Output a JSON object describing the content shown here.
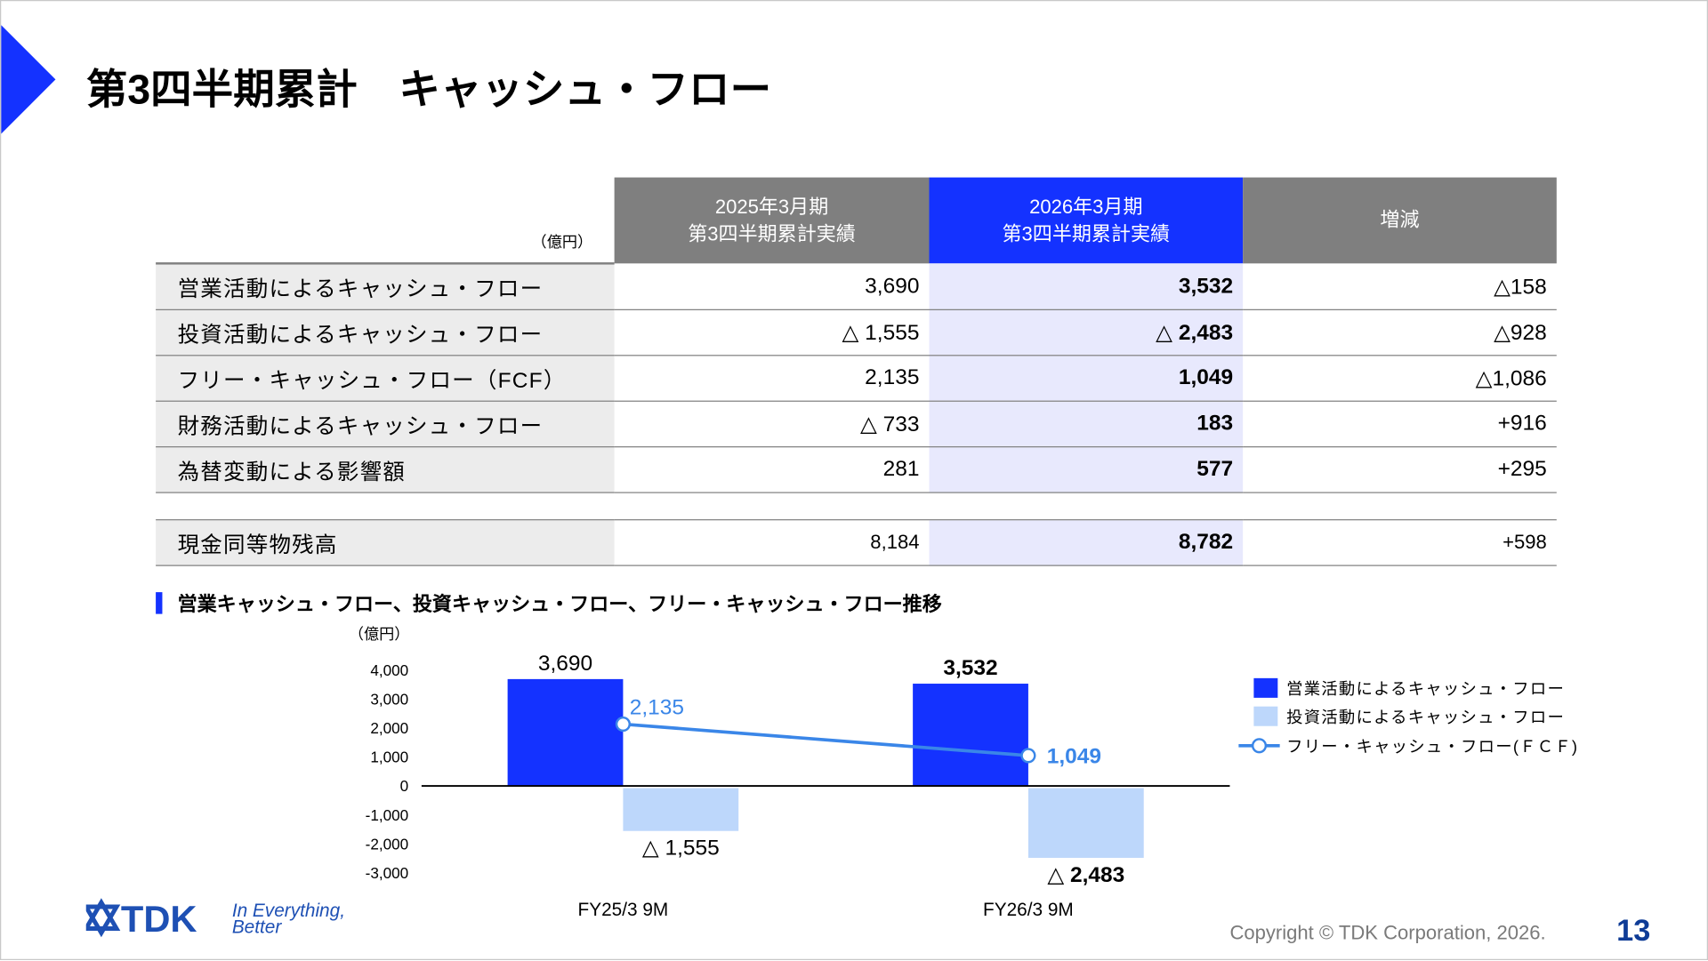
{
  "title": "第3四半期累計　キャッシュ・フロー",
  "table": {
    "unit": "（億円）",
    "headers": [
      {
        "line1": "2025年3月期",
        "line2": "第3四半期累計実績"
      },
      {
        "line1": "2026年3月期",
        "line2": "第3四半期累計実績"
      },
      {
        "line1": "増減",
        "line2": ""
      }
    ],
    "rows": [
      {
        "label": "営業活動によるキャッシュ・フロー",
        "fy25": "3,690",
        "fy26": "3,532",
        "diff": "△158"
      },
      {
        "label": "投資活動によるキャッシュ・フロー",
        "fy25": "△ 1,555",
        "fy26": "△ 2,483",
        "diff": "△928"
      },
      {
        "label": "フリー・キャッシュ・フロー（FCF）",
        "fy25": "2,135",
        "fy26": "1,049",
        "diff": "△1,086"
      },
      {
        "label": "財務活動によるキャッシュ・フロー",
        "fy25": "△ 733",
        "fy26": "183",
        "diff": "+916"
      },
      {
        "label": "為替変動による影響額",
        "fy25": "281",
        "fy26": "577",
        "diff": "+295"
      }
    ],
    "cash": {
      "label": "現金同等物残高",
      "fy25": "8,184",
      "fy26": "8,782",
      "diff": "+598"
    }
  },
  "chart_section_title": "営業キャッシュ・フロー、投資キャッシュ・フロー、フリー・キャッシュ・フロー推移",
  "chart_data": {
    "type": "bar",
    "ylabel": "（億円）",
    "ylim": [
      -3000,
      4000
    ],
    "yticks": [
      "4,000",
      "3,000",
      "2,000",
      "1,000",
      "0",
      "-1,000",
      "-2,000",
      "-3,000"
    ],
    "ytick_values": [
      4000,
      3000,
      2000,
      1000,
      0,
      -1000,
      -2000,
      -3000
    ],
    "categories": [
      "FY25/3 9M",
      "FY26/3 9M"
    ],
    "series": [
      {
        "name": "営業活動によるキャッシュ・フロー",
        "kind": "bar",
        "color": "#1432ff",
        "values": [
          3690,
          3532
        ],
        "labels": [
          "3,690",
          "3,532"
        ]
      },
      {
        "name": "投資活動によるキャッシュ・フロー",
        "kind": "bar",
        "color": "#bdd7fb",
        "values": [
          -1555,
          -2483
        ],
        "labels": [
          "△ 1,555",
          "△ 2,483"
        ]
      },
      {
        "name": "フリー・キャッシュ・フロー(ＦＣＦ)",
        "kind": "line",
        "color": "#3a86e8",
        "values": [
          2135,
          1049
        ],
        "labels": [
          "2,135",
          "1,049"
        ]
      }
    ],
    "legend": "right"
  },
  "footer": {
    "copyright": "Copyright  © TDK Corporation, 2026.",
    "page": "13",
    "logo_text": "TDK",
    "tagline1": "In Everything,",
    "tagline2": "Better"
  },
  "colors": {
    "accent": "#1432ff",
    "header_gray": "#7f7f7f",
    "page_number": "#0f3c96"
  }
}
